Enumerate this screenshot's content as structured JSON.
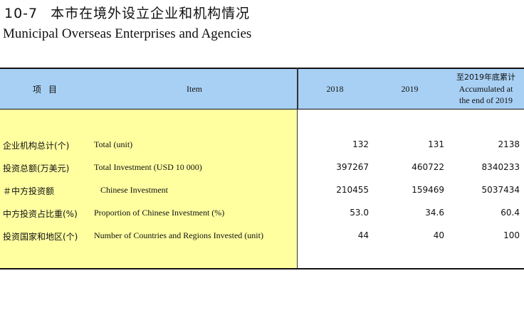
{
  "title": {
    "number": "10-7",
    "cn": "本市在境外设立企业和机构情况",
    "en": "Municipal Overseas Enterprises and Agencies"
  },
  "header": {
    "item_cn": "项目",
    "item_en": "Item",
    "col_2018": "2018",
    "col_2019": "2019",
    "col_acc_cn": "至2019年底累计",
    "col_acc_en_1": "Accumulated at",
    "col_acc_en_2": "the end of 2019"
  },
  "rows": [
    {
      "cn": "企业机构总计(个)",
      "en": "Total (unit)",
      "v2018": "132",
      "v2019": "131",
      "acc": "2138"
    },
    {
      "cn": "投资总额(万美元)",
      "en": "Total Investment (USD 10 000)",
      "v2018": "397267",
      "v2019": "460722",
      "acc": "8340233"
    },
    {
      "cn": "＃中方投资额",
      "en": "Chinese Investment",
      "v2018": "210455",
      "v2019": "159469",
      "acc": "5037434"
    },
    {
      "cn": "中方投资占比重(%)",
      "en": "Proportion of Chinese Investment (%)",
      "v2018": "53.0",
      "v2019": "34.6",
      "acc": "60.4"
    },
    {
      "cn": "投资国家和地区(个)",
      "en": "Number of Countries and Regions Invested (unit)",
      "v2018": "44",
      "v2019": "40",
      "acc": "100"
    }
  ],
  "colors": {
    "header_bg": "#a8d0f4",
    "label_bg": "#ffffa0"
  }
}
